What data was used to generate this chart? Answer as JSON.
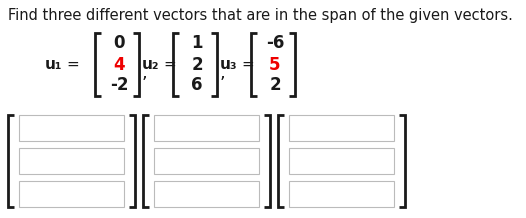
{
  "title": "Find three different vectors that are in the span of the given vectors.",
  "title_fontsize": 10.5,
  "u1_label": "u₁",
  "u2_label": "u₂",
  "u3_label": "u₃",
  "u1_values": [
    "0",
    "4",
    "-2"
  ],
  "u2_values": [
    "1",
    "2",
    "6"
  ],
  "u3_values": [
    "-6",
    "5",
    "2"
  ],
  "u1_red_index": 1,
  "u2_red_index": -1,
  "u3_red_index": 1,
  "bg_color": "#ffffff",
  "text_color": "#1a1a1a",
  "red_color": "#ee0000",
  "bracket_color": "#1a1a1a",
  "box_edge_color": "#bbbbbb",
  "box_face_color": "#ffffff"
}
